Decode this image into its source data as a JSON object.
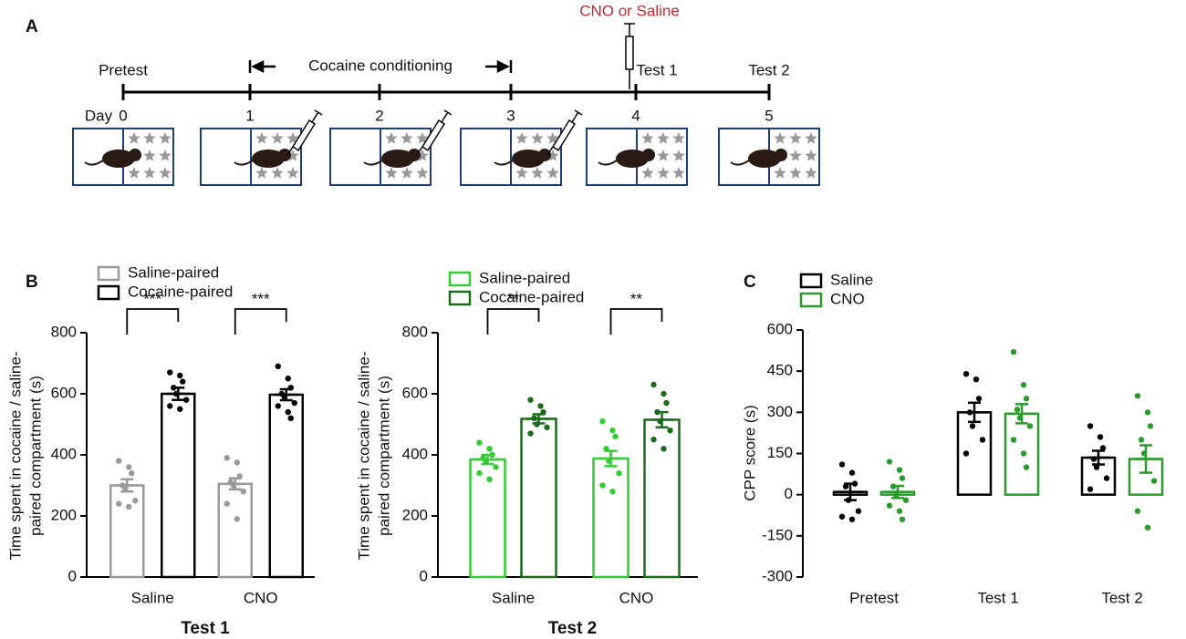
{
  "panel_labels": [
    "A",
    "B",
    "C"
  ],
  "timeline": {
    "annotation": "CNO or Saline",
    "pretest": "Pretest",
    "conditioning": "Cocaine conditioning",
    "test1": "Test 1",
    "test2": "Test 2",
    "day_prefix": "Day",
    "days": [
      0,
      1,
      2,
      3,
      4,
      5
    ]
  },
  "chart_data": [
    {
      "type": "bar",
      "xlabel": "Test 1",
      "ylabel": [
        "Time spent in cocaine / saline-",
        "paired compartment (s)"
      ],
      "categories": [
        "Saline",
        "CNO"
      ],
      "ylim": [
        0,
        800
      ],
      "yticks": [
        0,
        200,
        400,
        600,
        800
      ],
      "significance": [
        "***",
        "***"
      ],
      "series": [
        {
          "name": "Saline-paired",
          "color": "#999999",
          "values": [
            300,
            305
          ],
          "errors": [
            20,
            18
          ],
          "points": [
            [
              380,
              360,
              340,
              300,
              290,
              250,
              240,
              230
            ],
            [
              390,
              375,
              330,
              310,
              300,
              280,
              240,
              190
            ]
          ]
        },
        {
          "name": "Cocaine-paired",
          "color": "#000000",
          "values": [
            600,
            597
          ],
          "errors": [
            20,
            18
          ],
          "points": [
            [
              670,
              660,
              640,
              620,
              600,
              580,
              560,
              550
            ],
            [
              690,
              650,
              620,
              600,
              590,
              570,
              560,
              540,
              520
            ]
          ]
        }
      ]
    },
    {
      "type": "bar",
      "xlabel": "Test 2",
      "ylabel": [
        "Time spent in cocaine / saline-",
        "paired compartment (s)"
      ],
      "categories": [
        "Saline",
        "CNO"
      ],
      "ylim": [
        0,
        800
      ],
      "yticks": [
        0,
        200,
        400,
        600,
        800
      ],
      "significance": [
        "**",
        "**"
      ],
      "series": [
        {
          "name": "Saline-paired",
          "color": "#33cc33",
          "values": [
            385,
            388
          ],
          "errors": [
            15,
            25
          ],
          "points": [
            [
              440,
              420,
              400,
              390,
              380,
              360,
              340,
              320
            ],
            [
              510,
              480,
              460,
              420,
              380,
              340,
              300,
              280
            ]
          ]
        },
        {
          "name": "Cocaine-paired",
          "color": "#1a6b1a",
          "values": [
            518,
            515
          ],
          "errors": [
            15,
            25
          ],
          "points": [
            [
              580,
              560,
              540,
              520,
              500,
              490,
              470
            ],
            [
              630,
              600,
              570,
              540,
              510,
              480,
              450,
              420
            ]
          ]
        }
      ]
    },
    {
      "type": "bar",
      "ylabel": [
        "CPP score (s)"
      ],
      "categories": [
        "Pretest",
        "Test 1",
        "Test 2"
      ],
      "ylim": [
        -300,
        600
      ],
      "yticks": [
        -300,
        -150,
        0,
        150,
        300,
        450,
        600
      ],
      "series": [
        {
          "name": "Saline",
          "color": "#000000",
          "values": [
            10,
            300,
            135
          ],
          "errors": [
            30,
            35,
            25
          ],
          "points": [
            [
              110,
              80,
              40,
              30,
              -20,
              -60,
              -80,
              -90
            ],
            [
              440,
              420,
              350,
              300,
              250,
              200,
              150
            ],
            [
              250,
              210,
              170,
              130,
              100,
              60,
              20
            ]
          ]
        },
        {
          "name": "CNO",
          "color": "#2a9a2a",
          "values": [
            10,
            295,
            130
          ],
          "errors": [
            22,
            35,
            50
          ],
          "points": [
            [
              120,
              90,
              60,
              30,
              0,
              -20,
              -40,
              -60,
              -90
            ],
            [
              520,
              400,
              350,
              310,
              280,
              250,
              200,
              150,
              100
            ],
            [
              360,
              300,
              250,
              200,
              150,
              50,
              -60,
              -120
            ]
          ]
        }
      ]
    }
  ]
}
